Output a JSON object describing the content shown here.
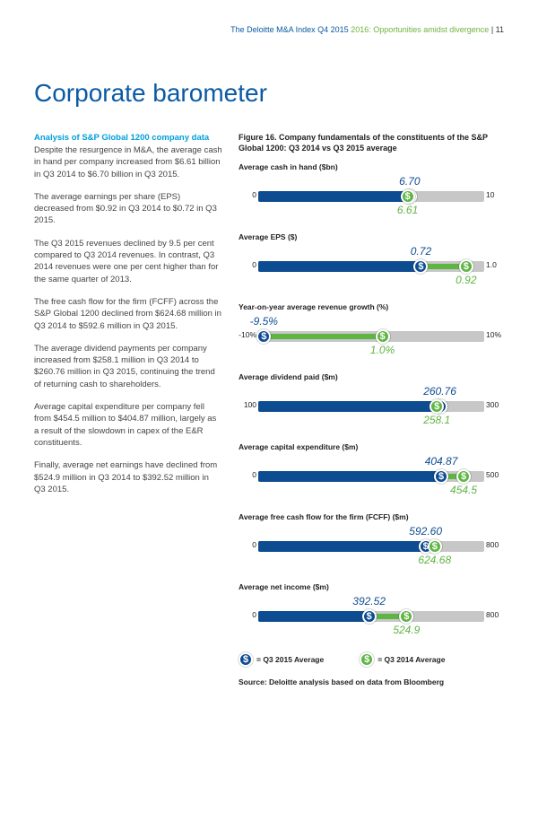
{
  "header": {
    "title_blue": "The Deloitte M&A Index Q4 2015",
    "title_green": "2016: Opportunities amidst divergence",
    "page_number": "| 11"
  },
  "page_title": "Corporate barometer",
  "left": {
    "subhead": "Analysis of S&P Global 1200 company data",
    "paragraphs": [
      "Despite the resurgence in M&A, the average cash in hand per company increased from $6.61 billion in Q3 2014 to $6.70 billion in Q3 2015.",
      "The average earnings per share (EPS) decreased from $0.92 in Q3 2014 to $0.72 in Q3 2015.",
      "The Q3 2015 revenues declined by 9.5 per cent compared to Q3 2014 revenues. In contrast, Q3 2014 revenues were one per cent higher than for the same quarter of 2013.",
      "The free cash flow for the firm (FCFF) across the S&P Global 1200 declined from $624.68 million in Q3 2014 to $592.6 million in Q3 2015.",
      "The average dividend payments per company increased from $258.1 million in Q3 2014 to $260.76 million in Q3 2015, continuing the trend of returning cash to shareholders.",
      "Average capital expenditure per company fell from $454.5 million to $404.87 million, largely as a result of the slowdown in capex of the E&R constituents.",
      "Finally, average net earnings have declined from $524.9 million in Q3 2014 to $392.52 million in Q3 2015."
    ]
  },
  "figure": {
    "title": "Figure 16. Company fundamentals of the constituents of the S&P Global 1200: Q3 2014 vs Q3 2015 average",
    "colors": {
      "blue": "#0e4c92",
      "green": "#5fb544",
      "track": "#c7c7c7",
      "bg": "#ffffff"
    },
    "metrics": [
      {
        "label": "Average cash in hand ($bn)",
        "axis_min": "0",
        "axis_max": "10",
        "min": 0,
        "max": 10,
        "q2015": 6.7,
        "q2015_label": "6.70",
        "q2014": 6.61,
        "q2014_label": "6.61",
        "blue_top": true
      },
      {
        "label": "Average EPS ($)",
        "axis_min": "0",
        "axis_max": "1.0",
        "min": 0,
        "max": 1.0,
        "q2015": 0.72,
        "q2015_label": "0.72",
        "q2014": 0.92,
        "q2014_label": "0.92",
        "blue_top": true
      },
      {
        "label": "Year-on-year average revenue growth (%)",
        "axis_min": "-10%",
        "axis_max": "10%",
        "min": -10,
        "max": 10,
        "q2015": -9.5,
        "q2015_label": "-9.5%",
        "q2014": 1.0,
        "q2014_label": "1.0%",
        "blue_top": true
      },
      {
        "label": "Average dividend paid ($m)",
        "axis_min": "100",
        "axis_max": "300",
        "min": 100,
        "max": 300,
        "q2015": 260.76,
        "q2015_label": "260.76",
        "q2014": 258.1,
        "q2014_label": "258.1",
        "blue_top": true
      },
      {
        "label": "Average capital expenditure ($m)",
        "axis_min": "0",
        "axis_max": "500",
        "min": 0,
        "max": 500,
        "q2015": 404.87,
        "q2015_label": "404.87",
        "q2014": 454.5,
        "q2014_label": "454.5",
        "blue_top": true
      },
      {
        "label": "Average free cash flow for the firm (FCFF) ($m)",
        "axis_min": "0",
        "axis_max": "800",
        "min": 0,
        "max": 800,
        "q2015": 592.6,
        "q2015_label": "592.60",
        "q2014": 624.68,
        "q2014_label": "624.68",
        "blue_top": true
      },
      {
        "label": "Average net income ($m)",
        "axis_min": "0",
        "axis_max": "800",
        "min": 0,
        "max": 800,
        "q2015": 392.52,
        "q2015_label": "392.52",
        "q2014": 524.9,
        "q2014_label": "524.9",
        "blue_top": true
      }
    ],
    "legend": {
      "q2015": "= Q3 2015 Average",
      "q2014": "= Q3 2014 Average"
    },
    "source": "Source: Deloitte analysis based on data from Bloomberg"
  }
}
